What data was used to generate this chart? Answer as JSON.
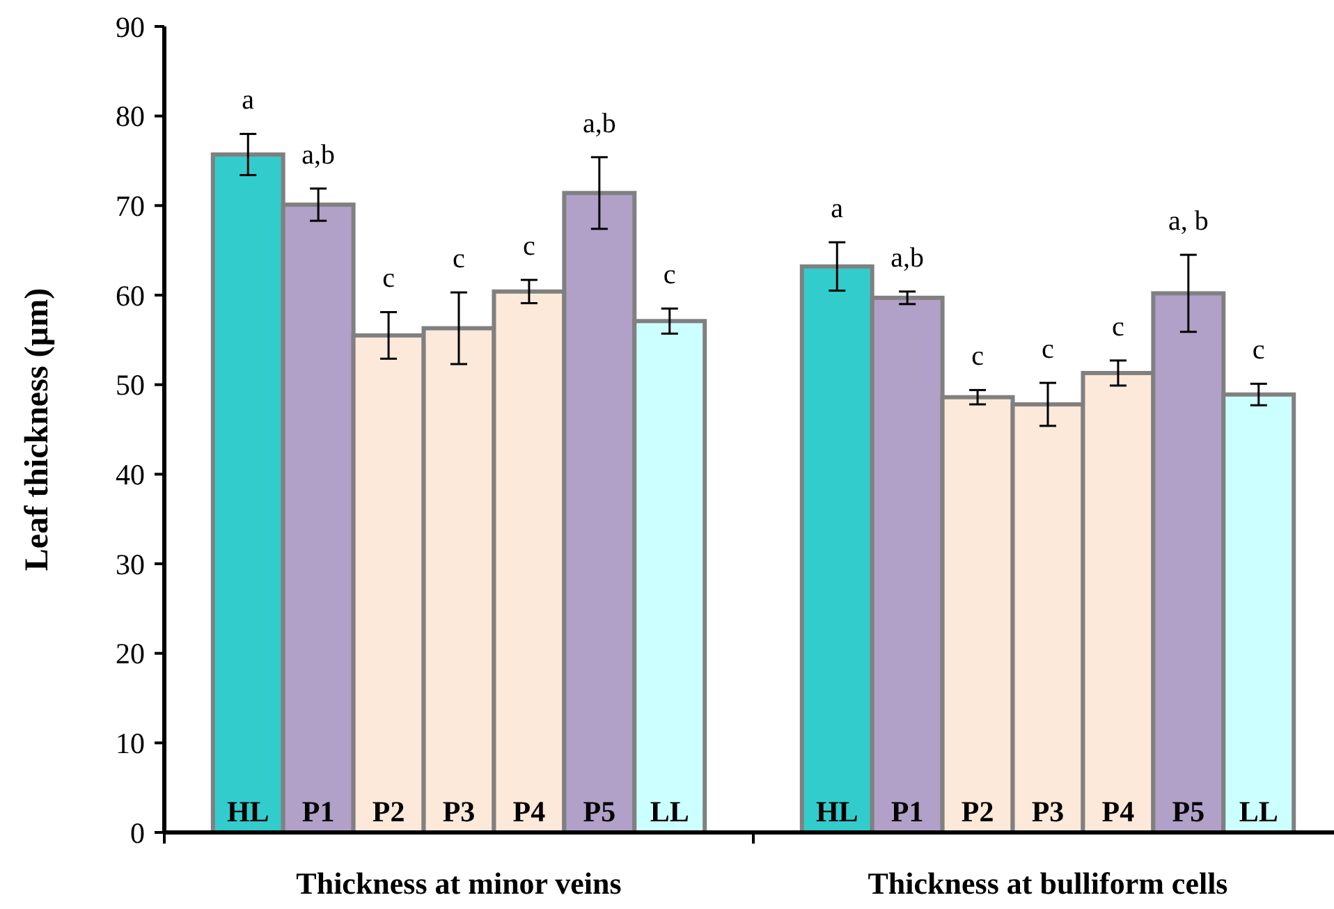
{
  "chart_data": {
    "type": "bar",
    "ylabel": "Leaf thickness (µm)",
    "categories": [
      "Thickness at minor veins",
      "Thickness at bulliform cells"
    ],
    "series": [
      {
        "name": "HL",
        "color": "#33cccc",
        "values": [
          75.7,
          63.2
        ],
        "errors": [
          2.3,
          2.7
        ]
      },
      {
        "name": "P1",
        "color": "#b1a0c7",
        "values": [
          70.1,
          59.7
        ],
        "errors": [
          1.8,
          0.7
        ]
      },
      {
        "name": "P2",
        "color": "#fde9d9",
        "values": [
          55.5,
          48.6
        ],
        "errors": [
          2.6,
          0.8
        ]
      },
      {
        "name": "P3",
        "color": "#fde9d9",
        "values": [
          56.3,
          47.8
        ],
        "errors": [
          4,
          2.4
        ]
      },
      {
        "name": "P4",
        "color": "#fde9d9",
        "values": [
          60.4,
          51.3
        ],
        "errors": [
          1.3,
          1.4
        ]
      },
      {
        "name": "P5",
        "color": "#b1a0c7",
        "values": [
          71.4,
          60.2
        ],
        "errors": [
          4,
          4.3
        ]
      },
      {
        "name": "LL",
        "color": "#ccffff",
        "values": [
          57.1,
          48.9
        ],
        "errors": [
          1.4,
          1.2
        ]
      }
    ],
    "ylim": [
      0,
      90
    ],
    "yticks": [
      0,
      10,
      20,
      30,
      40,
      50,
      60,
      70,
      80,
      90
    ],
    "grid": false,
    "annotations": [
      "a",
      "a,b",
      "c",
      "c",
      "c",
      "a,b",
      "c",
      "a",
      "a,b",
      "c",
      "c",
      "c",
      "a, b",
      "c"
    ]
  }
}
